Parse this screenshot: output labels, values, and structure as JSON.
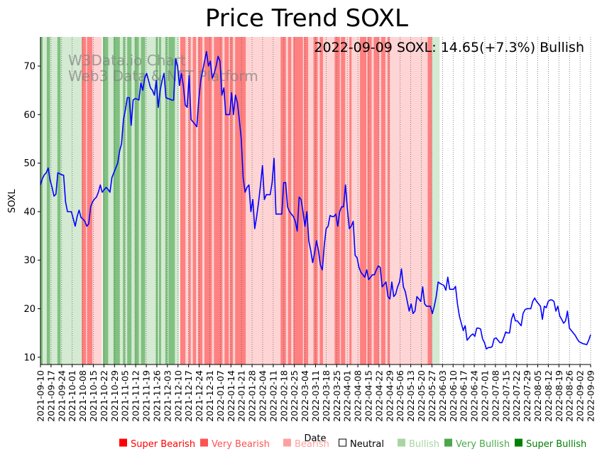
{
  "chart_data": {
    "type": "line",
    "title": "Price Trend SOXL",
    "annotation": "2022-09-09 SOXL: 14.65(+7.3%) Bullish",
    "watermark": [
      "W3Data.io Chart",
      "Web3 Data & NFT Platform"
    ],
    "xlabel": "Date",
    "ylabel": "SOXL",
    "ylim": [
      8.5,
      76
    ],
    "yticks": [
      10,
      20,
      30,
      40,
      50,
      60,
      70
    ],
    "x_range": [
      "2021-09-10",
      "2022-09-09"
    ],
    "xtick_labels": [
      "2021-09-10",
      "2021-09-17",
      "2021-09-24",
      "2021-10-01",
      "2021-10-08",
      "2021-10-15",
      "2021-10-22",
      "2021-10-29",
      "2021-11-05",
      "2021-11-12",
      "2021-11-19",
      "2021-11-26",
      "2021-12-03",
      "2021-12-10",
      "2021-12-17",
      "2021-12-24",
      "2021-12-31",
      "2022-01-07",
      "2022-01-14",
      "2022-01-21",
      "2022-01-28",
      "2022-02-04",
      "2022-02-11",
      "2022-02-18",
      "2022-02-25",
      "2022-03-04",
      "2022-03-11",
      "2022-03-18",
      "2022-03-25",
      "2022-04-01",
      "2022-04-08",
      "2022-04-15",
      "2022-04-22",
      "2022-04-29",
      "2022-05-06",
      "2022-05-13",
      "2022-05-20",
      "2022-05-27",
      "2022-06-03",
      "2022-06-10",
      "2022-06-17",
      "2022-06-24",
      "2022-07-01",
      "2022-07-08",
      "2022-07-15",
      "2022-07-22",
      "2022-07-29",
      "2022-08-05",
      "2022-08-12",
      "2022-08-19",
      "2022-08-26",
      "2022-09-02",
      "2022-09-09"
    ],
    "series": [
      {
        "name": "SOXL",
        "color": "#0000ff",
        "values": [
          45.5,
          46.8,
          47.6,
          48.0,
          49.0,
          46.5,
          45.0,
          43.2,
          43.6,
          48.0,
          47.8,
          47.6,
          47.5,
          42.0,
          40.0,
          40.0,
          40.0,
          38.5,
          37.0,
          39.0,
          40.3,
          38.8,
          38.5,
          38.0,
          37.0,
          37.5,
          41.0,
          42.0,
          42.6,
          43.0,
          44.0,
          45.5,
          44.0,
          44.5,
          45.0,
          44.6,
          44.0,
          47.0,
          48.0,
          49.0,
          50.0,
          52.5,
          54.0,
          59.0,
          61.0,
          63.5,
          63.5,
          57.8,
          63.0,
          63.3,
          63.2,
          63.0,
          66.5,
          65.0,
          67.5,
          68.5,
          67.0,
          65.5,
          65.0,
          64.0,
          67.0,
          61.5,
          65.0,
          67.0,
          68.5,
          63.5,
          63.3,
          63.2,
          63.0,
          63.0,
          71.5,
          70.0,
          66.0,
          68.5,
          66.0,
          62.0,
          61.5,
          68.0,
          59.0,
          58.5,
          58.0,
          57.5,
          63.0,
          67.0,
          69.0,
          71.0,
          73.0,
          70.0,
          71.0,
          67.5,
          68.5,
          70.0,
          72.0,
          71.0,
          64.0,
          65.5,
          60.0,
          60.0,
          60.0,
          64.5,
          60.0,
          64.0,
          62.5,
          59.0,
          55.0,
          47.0,
          44.0,
          45.0,
          45.5,
          40.0,
          42.5,
          36.5,
          39.0,
          42.0,
          45.5,
          49.5,
          42.5,
          43.5,
          43.5,
          43.5,
          46.0,
          51.0,
          39.5,
          39.5,
          39.5,
          39.5,
          46.0,
          46.0,
          41.0,
          40.0,
          39.5,
          39.0,
          38.0,
          36.0,
          43.0,
          42.5,
          40.0,
          37.0,
          40.0,
          34.0,
          32.0,
          29.5,
          31.5,
          34.0,
          32.0,
          29.0,
          28.0,
          33.0,
          36.5,
          37.0,
          39.2,
          39.0,
          39.0,
          39.5,
          37.0,
          40.0,
          41.0,
          41.0,
          45.5,
          40.5,
          36.5,
          37.0,
          38.0,
          31.0,
          30.5,
          28.5,
          27.5,
          27.0,
          26.5,
          28.0,
          26.0,
          26.5,
          27.0,
          27.0,
          28.0,
          28.8,
          28.5,
          24.5,
          25.0,
          25.5,
          22.5,
          22.0,
          25.5,
          22.5,
          23.0,
          24.5,
          25.5,
          28.2,
          24.5,
          23.5,
          21.5,
          19.5,
          21.0,
          19.0,
          19.5,
          22.5,
          22.0,
          21.5,
          24.5,
          21.0,
          20.5,
          20.5,
          20.5,
          19.0,
          20.5,
          22.5,
          25.5,
          25.2,
          25.0,
          24.8,
          23.8,
          26.5,
          24.0,
          24.0,
          24.0,
          24.6,
          21.0,
          18.5,
          17.0,
          15.5,
          16.5,
          13.5,
          14.0,
          14.5,
          14.8,
          14.3,
          16.0,
          16.0,
          15.8,
          13.8,
          13.0,
          11.7,
          12.0,
          12.0,
          12.2,
          13.8,
          14.0,
          13.5,
          13.0,
          13.0,
          14.0,
          15.2,
          15.0,
          15.0,
          17.8,
          19.0,
          17.5,
          17.5,
          17.0,
          16.5,
          19.0,
          19.8,
          20.0,
          20.0,
          20.0,
          21.5,
          22.2,
          21.5,
          21.0,
          20.5,
          17.8,
          20.5,
          20.2,
          21.5,
          21.8,
          21.8,
          21.5,
          19.5,
          20.5,
          18.5,
          17.8,
          17.0,
          17.5,
          19.5,
          16.0,
          15.5,
          15.0,
          14.5,
          13.8,
          13.2,
          13.0,
          12.8,
          12.7,
          12.6,
          13.5,
          14.65
        ]
      }
    ],
    "sentiment_bands": [
      [
        "Very Bullish",
        0,
        1.4
      ],
      [
        "Bullish",
        1.4,
        4.2
      ],
      [
        "Very Bullish",
        4.2,
        6.3
      ],
      [
        "Bullish",
        6.3,
        11.2
      ],
      [
        "Very Bullish",
        11.2,
        13.3
      ],
      [
        "Bullish",
        13.3,
        27.3
      ],
      [
        "Very Bearish",
        27.3,
        30.1
      ],
      [
        "Bearish",
        30.1,
        30.8
      ],
      [
        "Very Bearish",
        30.8,
        34.3
      ],
      [
        "Bearish",
        34.3,
        40.6
      ],
      [
        "Neutral",
        40.6,
        41.3
      ],
      [
        "Very Bullish",
        41.3,
        44.8
      ],
      [
        "Bullish",
        44.8,
        48.3
      ],
      [
        "Very Bullish",
        48.3,
        52.5
      ],
      [
        "Bullish",
        52.5,
        54.6
      ],
      [
        "Very Bullish",
        54.6,
        56.0
      ],
      [
        "Bullish",
        56.0,
        57.4
      ],
      [
        "Very Bullish",
        57.4,
        60.2
      ],
      [
        "Bullish",
        60.2,
        62.3
      ],
      [
        "Very Bullish",
        62.3,
        65.1
      ],
      [
        "Bullish",
        65.1,
        66.5
      ],
      [
        "Very Bullish",
        66.5,
        69.3
      ],
      [
        "Bullish",
        69.3,
        76.3
      ],
      [
        "Very Bullish",
        76.3,
        77.7
      ],
      [
        "Bullish",
        77.7,
        78.4
      ],
      [
        "Very Bullish",
        78.4,
        79.8
      ],
      [
        "Bullish",
        79.8,
        82.6
      ],
      [
        "Very Bullish",
        82.6,
        84.0
      ],
      [
        "Bullish",
        84.0,
        84.7
      ],
      [
        "Very Bullish",
        84.7,
        88.9
      ],
      [
        "Bullish",
        88.9,
        91.7
      ],
      [
        "Neutral",
        91.7,
        92.4
      ],
      [
        "Very Bearish",
        92.4,
        95.9
      ],
      [
        "Bearish",
        95.9,
        98.0
      ],
      [
        "Very Bearish",
        98.0,
        99.4
      ],
      [
        "Bearish",
        99.4,
        100.8
      ],
      [
        "Very Bearish",
        100.8,
        102.9
      ],
      [
        "Bearish",
        102.9,
        104.3
      ],
      [
        "Very Bearish",
        104.3,
        107.1
      ],
      [
        "Bearish",
        107.1,
        108.5
      ],
      [
        "Very Bearish",
        108.5,
        113.4
      ],
      [
        "Bearish",
        113.4,
        114.8
      ],
      [
        "Very Bearish",
        114.8,
        120.4
      ],
      [
        "Bearish",
        120.4,
        121.8
      ],
      [
        "Very Bearish",
        121.8,
        124.6
      ],
      [
        "Bearish",
        124.6,
        125.3
      ],
      [
        "Very Bearish",
        125.3,
        127.4
      ],
      [
        "Bearish",
        127.4,
        128.8
      ],
      [
        "Very Bearish",
        128.8,
        135.8
      ],
      [
        "Bearish",
        135.8,
        158.9
      ],
      [
        "Very Bearish",
        158.9,
        162.4
      ],
      [
        "Bearish",
        162.4,
        163.8
      ],
      [
        "Very Bearish",
        163.8,
        165.9
      ],
      [
        "Bearish",
        165.9,
        167.3
      ],
      [
        "Very Bearish",
        167.3,
        173.6
      ],
      [
        "Bearish",
        173.6,
        174.3
      ],
      [
        "Very Bearish",
        174.3,
        177.1
      ],
      [
        "Bearish",
        177.1,
        180.6
      ],
      [
        "Very Bearish",
        180.6,
        183.4
      ],
      [
        "Bearish",
        183.4,
        184.8
      ],
      [
        "Very Bearish",
        184.8,
        186.9
      ],
      [
        "Bearish",
        186.9,
        194.6
      ],
      [
        "Very Bearish",
        194.6,
        198.1
      ],
      [
        "Bearish",
        198.1,
        198.8
      ],
      [
        "Very Bearish",
        198.8,
        201.6
      ],
      [
        "Bearish",
        201.6,
        204.4
      ],
      [
        "Very Bearish",
        204.4,
        205.8
      ],
      [
        "Bearish",
        205.8,
        211.4
      ],
      [
        "Very Bearish",
        211.4,
        215.6
      ],
      [
        "Bearish",
        215.6,
        216.3
      ],
      [
        "Very Bearish",
        216.3,
        219.1
      ],
      [
        "Bearish",
        219.1,
        220.5
      ],
      [
        "Very Bearish",
        220.5,
        224.0
      ],
      [
        "Bearish",
        224.0,
        225.4
      ],
      [
        "Very Bearish",
        225.4,
        228.2
      ],
      [
        "Bearish",
        228.2,
        229.6
      ],
      [
        "Very Bearish",
        229.6,
        231.0
      ],
      [
        "Bearish",
        231.0,
        256.2
      ],
      [
        "Very Bearish",
        256.2,
        259.0
      ],
      [
        "Bullish",
        259.0,
        263.9
      ]
    ],
    "legend": [
      {
        "label": "Super Bearish",
        "color": "#ff0000"
      },
      {
        "label": "Very Bearish",
        "color": "#ff5252"
      },
      {
        "label": "Bearish",
        "color": "#ffa0a0"
      },
      {
        "label": "Neutral",
        "color": "#000000"
      },
      {
        "label": "Bullish",
        "color": "#a8d5a2"
      },
      {
        "label": "Very Bullish",
        "color": "#4aa84a"
      },
      {
        "label": "Super Bullish",
        "color": "#008000"
      }
    ],
    "band_colors": {
      "Very Bullish": "#80c080",
      "Bullish": "#d4ead2",
      "Neutral": "#ffffff",
      "Bearish": "#ffd4d4",
      "Very Bearish": "#ff8080"
    },
    "line_color": "#0000ff",
    "legend_placement": "bottom-right"
  }
}
